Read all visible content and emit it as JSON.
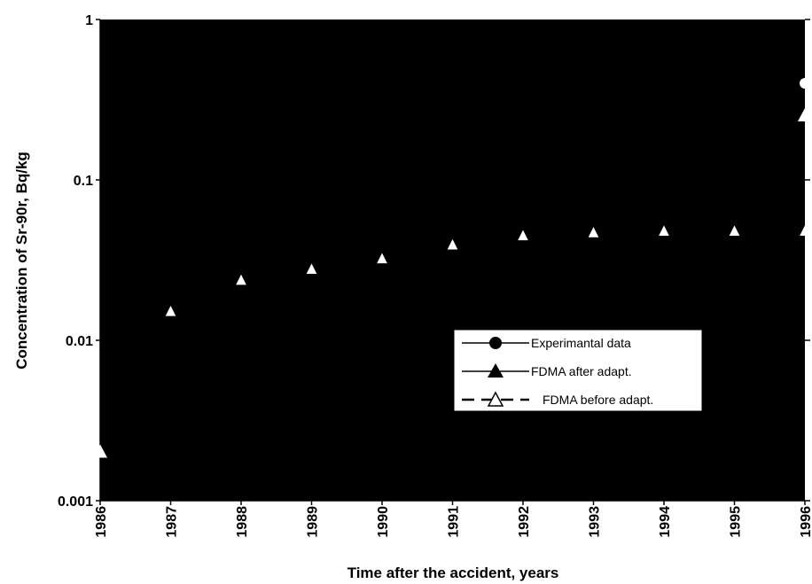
{
  "chart_data": {
    "type": "scatter",
    "title": "",
    "xlabel": "Time after the accident,  years",
    "ylabel": "Concentration of Sr-90r, Bq/kg",
    "y_scale": "log",
    "xlim": [
      1986,
      1996
    ],
    "ylim": [
      0.001,
      1
    ],
    "x_ticks": [
      "1986",
      "1987",
      "1988",
      "1989",
      "1990",
      "1991",
      "1992",
      "1993",
      "1994",
      "1995",
      "1996"
    ],
    "y_ticks": [
      "0.001",
      "0.01",
      "0.1",
      "1"
    ],
    "plot_background": "#000000",
    "grid": false,
    "legend_position": "center-right",
    "series": [
      {
        "name": "Experimantal data",
        "marker": "filled-circle",
        "line": "solid",
        "x": [
          1996
        ],
        "y": [
          0.4
        ]
      },
      {
        "name": "FDMA after adapt.",
        "marker": "filled-triangle",
        "line": "solid",
        "x": [
          1986,
          1996
        ],
        "y": [
          0.002,
          0.25
        ]
      },
      {
        "name": "FDMA before adapt.",
        "marker": "open-triangle",
        "line": "dashed",
        "x": [
          1987,
          1988,
          1989,
          1990,
          1991,
          1992,
          1993,
          1994,
          1995,
          1996
        ],
        "y": [
          0.015,
          0.0235,
          0.0275,
          0.032,
          0.039,
          0.0445,
          0.0465,
          0.0475,
          0.0475,
          0.0475
        ]
      }
    ]
  }
}
